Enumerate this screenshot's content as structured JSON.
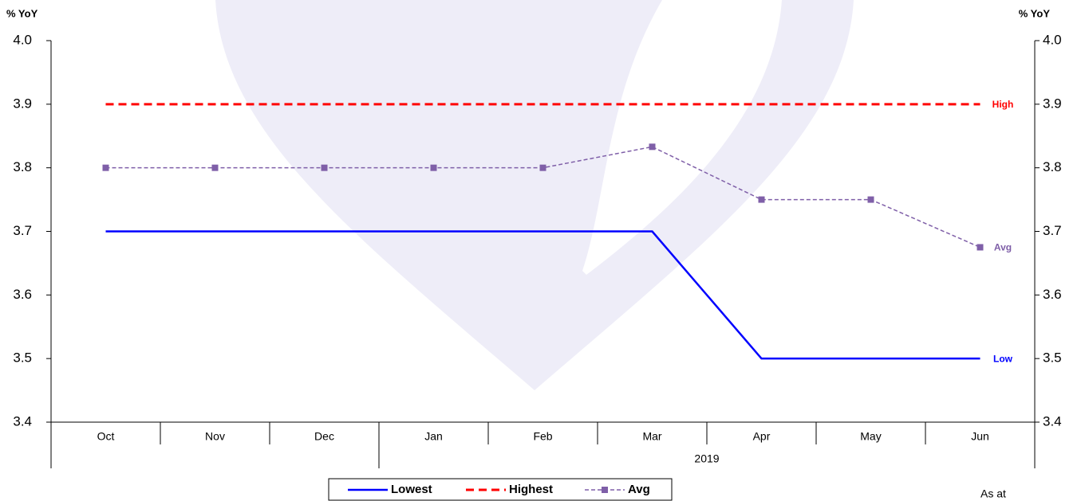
{
  "chart_data": {
    "type": "line",
    "y_label": "% YoY",
    "y2_label": "% YoY",
    "categories": [
      "Oct",
      "Nov",
      "Dec",
      "Jan",
      "Feb",
      "Mar",
      "Apr",
      "May",
      "Jun"
    ],
    "x_groups": [
      {
        "label": "2019",
        "start": 3,
        "end": 8
      }
    ],
    "series": [
      {
        "name": "Lowest",
        "color": "#0000ff",
        "style": "solid",
        "end_label": "Low",
        "values": [
          3.7,
          3.7,
          3.7,
          3.7,
          3.7,
          3.7,
          3.5,
          3.5,
          3.5
        ]
      },
      {
        "name": "Highest",
        "color": "#ff0000",
        "style": "dashed",
        "end_label": "High",
        "values": [
          3.9,
          3.9,
          3.9,
          3.9,
          3.9,
          3.9,
          3.9,
          3.9,
          3.9
        ]
      },
      {
        "name": "Avg",
        "color": "#7f5fa8",
        "style": "dashed-marker",
        "end_label": "Avg",
        "values": [
          3.8,
          3.8,
          3.8,
          3.8,
          3.8,
          3.833,
          3.75,
          3.75,
          3.675
        ]
      }
    ],
    "ylim": [
      3.4,
      4.0
    ],
    "yticks": [
      3.4,
      3.5,
      3.6,
      3.7,
      3.8,
      3.9,
      {
        "value": 4.0,
        "label": "4.0"
      }
    ],
    "y2lim": [
      3.4,
      4.0
    ],
    "y2ticks": [
      3.4,
      3.5,
      3.6,
      3.7,
      3.8,
      3.9,
      {
        "value": 4.0,
        "label": "4.0"
      }
    ],
    "legend": "bottom",
    "footnote": "As at"
  }
}
